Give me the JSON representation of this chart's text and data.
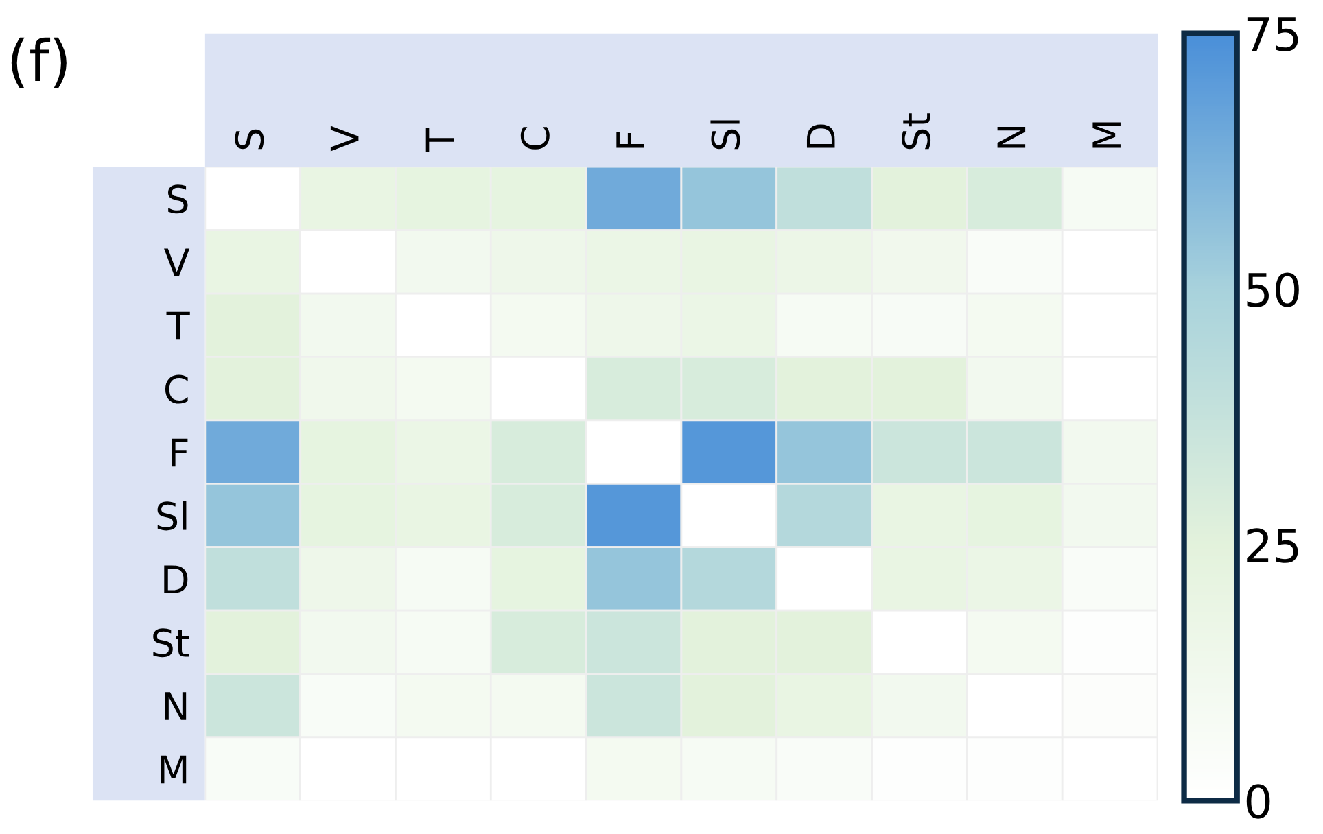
{
  "chart_data": {
    "type": "heatmap",
    "title": "(f)",
    "categories": [
      "S",
      "V",
      "T",
      "C",
      "F",
      "Sl",
      "D",
      "St",
      "N",
      "M"
    ],
    "y_categories": [
      "S",
      "V",
      "T",
      "C",
      "F",
      "Sl",
      "D",
      "St",
      "N",
      "M"
    ],
    "cells": [
      [
        0,
        20,
        22,
        22,
        65,
        55,
        40,
        25,
        30,
        8
      ],
      [
        20,
        0,
        12,
        15,
        18,
        20,
        17,
        13,
        5,
        0
      ],
      [
        25,
        12,
        0,
        10,
        15,
        18,
        8,
        7,
        10,
        0
      ],
      [
        25,
        14,
        10,
        0,
        30,
        30,
        25,
        25,
        12,
        0
      ],
      [
        65,
        22,
        18,
        30,
        0,
        72,
        55,
        35,
        35,
        12
      ],
      [
        55,
        22,
        20,
        30,
        72,
        0,
        45,
        20,
        22,
        12
      ],
      [
        40,
        15,
        8,
        22,
        55,
        45,
        0,
        20,
        18,
        5
      ],
      [
        25,
        12,
        8,
        30,
        35,
        25,
        25,
        0,
        10,
        2
      ],
      [
        35,
        6,
        10,
        10,
        35,
        25,
        20,
        12,
        0,
        3
      ],
      [
        6,
        0,
        0,
        0,
        10,
        8,
        5,
        2,
        2,
        0
      ]
    ],
    "clim": [
      0,
      75
    ],
    "cticks": [
      0,
      25,
      50,
      75
    ]
  }
}
